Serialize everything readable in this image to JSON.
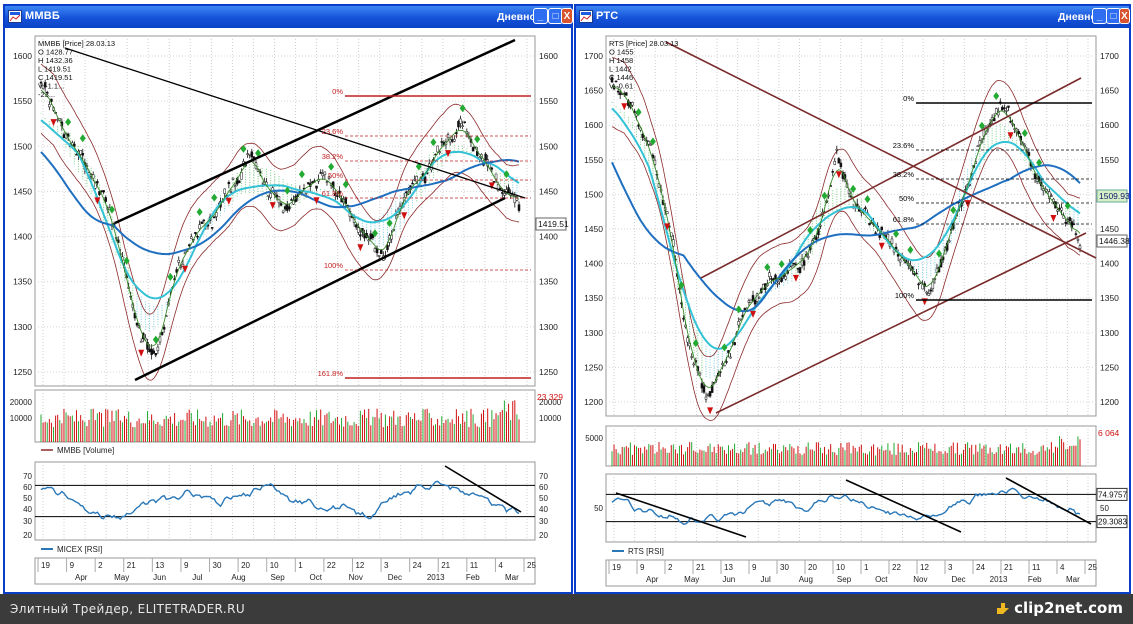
{
  "windows": [
    {
      "id": "mmvb",
      "title": "ММВБ",
      "period": "Дневной",
      "buttons": {
        "minimize": "_",
        "maximize": "□",
        "close": "X"
      },
      "legend": [
        "ММВБ [Price] 28.03.13",
        "O 1428.77",
        "H 1432.36",
        "L 1419.51",
        "C 1419.51",
        "V -1.1...",
        "-23..."
      ],
      "price_axis": [
        "1600",
        "1550",
        "1500",
        "1450",
        "1400",
        "1350",
        "1300",
        "1250"
      ],
      "price_axis_right": [
        "1600",
        "1550",
        "1500",
        "1450",
        "1400",
        "1350",
        "1300",
        "1250"
      ],
      "last_price": "1419.51",
      "fib_levels": [
        "0%",
        "23.6%",
        "38.2%",
        "50%",
        "61.8%",
        "100%",
        "161.8%"
      ],
      "volume_axis": [
        "20000",
        "10000"
      ],
      "volume_axis_right": [
        "20000",
        "10000"
      ],
      "volume_last": "23 329",
      "volume_label": "ММВБ [Volume]",
      "rsi_axis": [
        "70",
        "60",
        "50",
        "40",
        "30",
        "20"
      ],
      "rsi_axis_right": [
        "70",
        "60",
        "50",
        "40",
        "30",
        "20"
      ],
      "rsi_label": "MICEX [RSI]",
      "date_days": [
        "19",
        "9",
        "2",
        "21",
        "13",
        "9",
        "30",
        "20",
        "10",
        "1",
        "22",
        "12",
        "3",
        "24",
        "21",
        "11",
        "4",
        "25"
      ],
      "date_months": [
        "Apr",
        "May",
        "Jun",
        "Jul",
        "Aug",
        "Sep",
        "Oct",
        "Nov",
        "Dec",
        "2013",
        "Feb",
        "Mar"
      ]
    },
    {
      "id": "rts",
      "title": "РТС",
      "period": "Дневной",
      "buttons": {
        "minimize": "_",
        "maximize": "□",
        "close": "X"
      },
      "legend": [
        "RTS [Price] 28.03.13",
        "O 1455",
        "H 1458",
        "L 1442",
        "C 1446",
        "V -0.61"
      ],
      "price_axis": [
        "1700",
        "1650",
        "1600",
        "1550",
        "1500",
        "1450",
        "1400",
        "1350",
        "1300",
        "1250",
        "1200"
      ],
      "price_axis_right": [
        "1700",
        "1650",
        "1600",
        "1550",
        "1500",
        "1450",
        "1400",
        "1350",
        "1300",
        "1250",
        "1200"
      ],
      "last_price": "1446.38",
      "tag_price": "1509.93",
      "fib_levels": [
        "0%",
        "23.6%",
        "38.2%",
        "50%",
        "61.8%",
        "100%"
      ],
      "volume_axis": [
        "5000"
      ],
      "volume_last": "6 064",
      "rsi_axis": [
        "50"
      ],
      "rsi_axis_right": [
        "50"
      ],
      "rsi_tag_high": "74.9757",
      "rsi_tag_low": "29.3083",
      "rsi_label": "RTS [RSI]",
      "date_days": [
        "19",
        "9",
        "2",
        "21",
        "13",
        "9",
        "30",
        "20",
        "10",
        "1",
        "22",
        "12",
        "3",
        "24",
        "21",
        "11",
        "4",
        "25"
      ],
      "date_months": [
        "Apr",
        "May",
        "Jun",
        "Jul",
        "Aug",
        "Sep",
        "Oct",
        "Nov",
        "Dec",
        "2013",
        "Feb",
        "Mar"
      ]
    }
  ],
  "status_bar": {
    "text": "Элитный Трейдер, ELITETRADER.RU",
    "brand": "clip2net.com"
  },
  "colors": {
    "window_border": "#0a3ec8",
    "bull_marker": "#22aa33",
    "bear_marker": "#d01010",
    "trend_black": "#000000",
    "trend_brown": "#7a2b2b",
    "ma_blue": "#1f6fc0",
    "ma_cyan": "#33c2d6",
    "rsi_line": "#2a78b8",
    "cloud_green": "#33bb44",
    "cloud_cyan": "#33b8d8"
  }
}
